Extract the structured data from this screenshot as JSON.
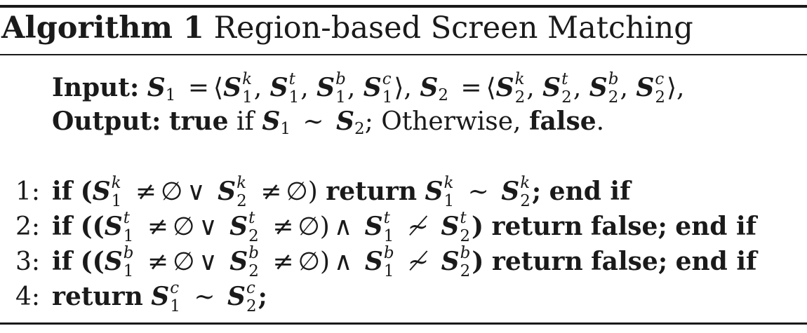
{
  "algorithm": {
    "label": "Algorithm 1",
    "title": "Region-based Screen Matching"
  },
  "input": {
    "label": "Input",
    "expression": "S1 = ⟨S1^k, S1^t, S1^b, S1^c⟩, S2 = ⟨S2^k, S2^t, S2^b, S2^c⟩,"
  },
  "output": {
    "label": "Output",
    "true_word": "true",
    "if_word": "if",
    "otherwise_text": "Otherwise,",
    "false_word": "false"
  },
  "steps": [
    {
      "number": "1:",
      "text": "if (S1^k ≠ ∅ ∨ S2^k ≠ ∅) return S1^k ∼ S2^k; end if"
    },
    {
      "number": "2:",
      "text": "if ((S1^t ≠ ∅ ∨ S2^t ≠ ∅) ∧ S1^t ≁ S2^t) return false; end if"
    },
    {
      "number": "3:",
      "text": "if ((S1^b ≠ ∅ ∨ S2^b ≠ ∅) ∧ S1^b ≁ S2^b) return false; end if"
    },
    {
      "number": "4:",
      "text": "return S1^c ∼ S2^c;"
    }
  ],
  "keywords": {
    "if": "if",
    "return": "return",
    "false": "false",
    "end_if": "end if"
  }
}
